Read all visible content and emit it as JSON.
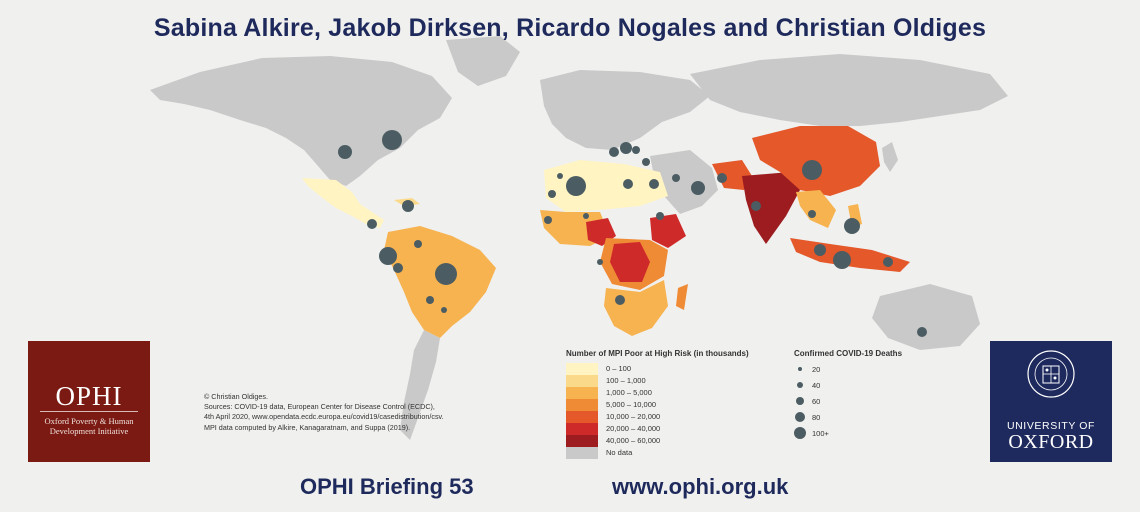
{
  "header": {
    "authors": "Sabina Alkire, Jakob Dirksen, Ricardo Nogales and Christian Oldiges"
  },
  "map": {
    "subject": "Number of MPI Poor at High Risk and Confirmed COVID-19 Deaths",
    "colors": {
      "ocean": "#f0f0ef",
      "land_no_data": "#c9c9c9",
      "class_0_100": "#fff4c2",
      "class_100_1000": "#fbd98a",
      "class_1000_5000": "#f6b350",
      "class_5000_10000": "#ef8a35",
      "class_10000_20000": "#e4582a",
      "class_20000_40000": "#cf2a2a",
      "class_40000_60000": "#9c1c1f",
      "death_marker": "#4b5d63"
    }
  },
  "credits": {
    "line1": "© Christian Oldiges.",
    "line2": "Sources: COVID-19 data, European Center for Disease Control (ECDC),",
    "line3": "4th April 2020, www.opendata.ecdc.europa.eu/covid19/casedistribution/csv.",
    "line4": "MPI data computed by Alkire, Kanagaratnam, and Suppa (2019)."
  },
  "legend_poor": {
    "title": "Number of MPI Poor at High Risk (in thousands)",
    "items": [
      {
        "label": "0 – 100",
        "color": "#fff4c2"
      },
      {
        "label": "100 – 1,000",
        "color": "#fbd98a"
      },
      {
        "label": "1,000 – 5,000",
        "color": "#f6b350"
      },
      {
        "label": "5,000 – 10,000",
        "color": "#ef8a35"
      },
      {
        "label": "10,000 – 20,000",
        "color": "#e4582a"
      },
      {
        "label": "20,000 – 40,000",
        "color": "#cf2a2a"
      },
      {
        "label": "40,000 – 60,000",
        "color": "#9c1c1f"
      },
      {
        "label": "No data",
        "color": "#c9c9c9"
      }
    ]
  },
  "legend_deaths": {
    "title": "Confirmed COVID-19 Deaths",
    "items": [
      {
        "label": "20"
      },
      {
        "label": "40"
      },
      {
        "label": "60"
      },
      {
        "label": "80"
      },
      {
        "label": "100+"
      }
    ]
  },
  "logo_ophi": {
    "name": "OPHI",
    "line1": "Oxford Poverty & Human",
    "line2": "Development Initiative"
  },
  "logo_oxford": {
    "top": "UNIVERSITY OF",
    "bottom": "OXFORD"
  },
  "footer": {
    "briefing": "OPHI Briefing 53",
    "url": "www.ophi.org.uk"
  }
}
